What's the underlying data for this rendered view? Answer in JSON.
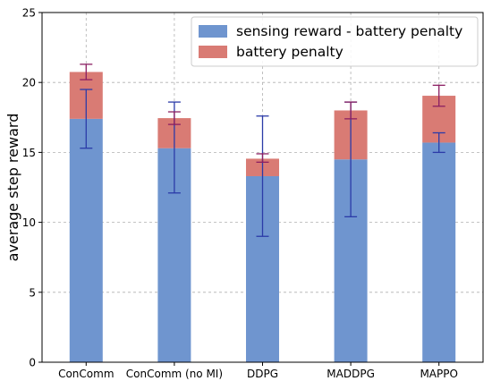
{
  "chart_data": {
    "type": "bar",
    "stacked": true,
    "categories": [
      "ConComm",
      "ConComm (no MI)",
      "DDPG",
      "MADDPG",
      "MAPPO"
    ],
    "series": [
      {
        "name": "sensing reward - battery penalty",
        "color": "#6f95cf",
        "error_color": "#2b3ba8",
        "values": [
          17.4,
          15.3,
          13.3,
          14.5,
          15.7
        ],
        "error_low": [
          15.3,
          12.1,
          9.0,
          10.4,
          15.0
        ],
        "error_high": [
          19.5,
          18.6,
          17.6,
          18.6,
          16.4
        ]
      },
      {
        "name": "battery penalty",
        "color": "#d97b74",
        "error_color": "#8b1f62",
        "values": [
          3.35,
          2.15,
          1.25,
          3.5,
          3.35
        ],
        "error_low": [
          20.2,
          17.0,
          14.3,
          17.4,
          18.3
        ],
        "error_high": [
          21.3,
          17.9,
          14.9,
          18.6,
          19.8
        ]
      }
    ],
    "ylabel": "average step reward",
    "xlabel": "",
    "ylim": [
      0,
      25
    ],
    "yticks": [
      "0",
      "5",
      "10",
      "15",
      "20",
      "25"
    ],
    "grid": true,
    "legend_position": "top-right"
  }
}
